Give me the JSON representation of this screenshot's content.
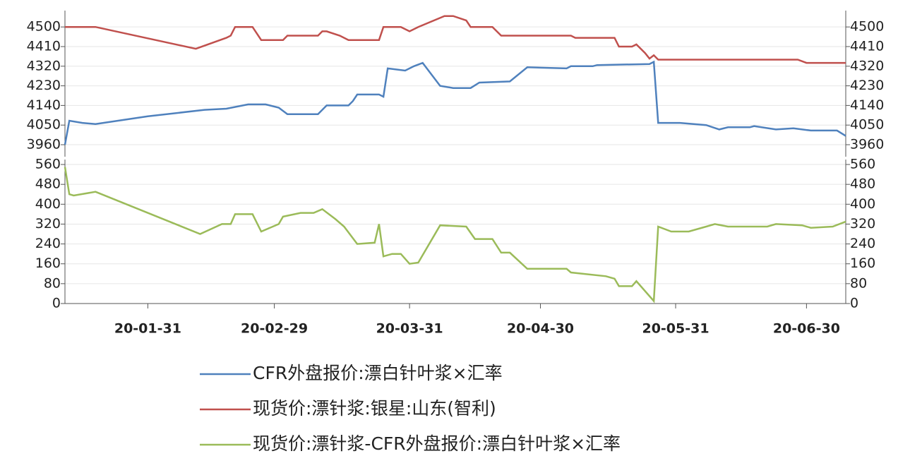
{
  "chart_data": [
    {
      "type": "line",
      "ylim": [
        3905,
        4575
      ],
      "yticks": [
        3960,
        4050,
        4140,
        4230,
        4320,
        4410,
        4500
      ],
      "grid": true,
      "xlim": [
        "20-01-12",
        "20-07-09"
      ],
      "legend": "bottom",
      "series": [
        {
          "name": "CFR外盘报价:漂白针叶浆×汇率",
          "color": "#4f81bd",
          "x": [
            "20-01-12",
            "20-01-13",
            "20-01-16",
            "20-01-19",
            "20-01-31",
            "20-02-13",
            "20-02-18",
            "20-02-23",
            "20-02-27",
            "20-03-01",
            "20-03-03",
            "20-03-10",
            "20-03-12",
            "20-03-17",
            "20-03-18",
            "20-03-19",
            "20-03-24",
            "20-03-25",
            "20-03-26",
            "20-03-30",
            "20-04-01",
            "20-04-03",
            "20-04-07",
            "20-04-10",
            "20-04-14",
            "20-04-16",
            "20-04-23",
            "20-04-27",
            "20-05-06",
            "20-05-07",
            "20-05-12",
            "20-05-13",
            "20-05-25",
            "20-05-26",
            "20-05-27",
            "20-06-01",
            "20-06-07",
            "20-06-10",
            "20-06-12",
            "20-06-17",
            "20-06-18",
            "20-06-23",
            "20-06-27",
            "20-07-01",
            "20-07-07",
            "20-07-09"
          ],
          "values": [
            3960,
            4070,
            4060,
            4055,
            4090,
            4120,
            4125,
            4145,
            4145,
            4130,
            4100,
            4100,
            4140,
            4140,
            4160,
            4190,
            4190,
            4180,
            4310,
            4300,
            4320,
            4335,
            4230,
            4220,
            4220,
            4245,
            4250,
            4315,
            4310,
            4320,
            4320,
            4325,
            4330,
            4340,
            4060,
            4060,
            4050,
            4030,
            4040,
            4040,
            4045,
            4030,
            4035,
            4025,
            4025,
            4000
          ]
        },
        {
          "name": "现货价:漂针浆:银星:山东(智利)",
          "color": "#c0504d",
          "x": [
            "20-01-12",
            "20-01-19",
            "20-02-11",
            "20-02-18",
            "20-02-19",
            "20-02-20",
            "20-02-24",
            "20-02-26",
            "20-03-02",
            "20-03-03",
            "20-03-10",
            "20-03-11",
            "20-03-12",
            "20-03-15",
            "20-03-17",
            "20-03-24",
            "20-03-25",
            "20-03-29",
            "20-03-31",
            "20-04-02",
            "20-04-08",
            "20-04-10",
            "20-04-13",
            "20-04-14",
            "20-04-19",
            "20-04-21",
            "20-05-07",
            "20-05-08",
            "20-05-17",
            "20-05-18",
            "20-05-21",
            "20-05-22",
            "20-05-24",
            "20-05-25",
            "20-05-26",
            "20-05-27",
            "20-06-28",
            "20-06-30",
            "20-07-09"
          ],
          "values": [
            4500,
            4500,
            4400,
            4450,
            4460,
            4500,
            4500,
            4440,
            4440,
            4460,
            4460,
            4480,
            4480,
            4460,
            4440,
            4440,
            4500,
            4500,
            4480,
            4500,
            4550,
            4550,
            4530,
            4500,
            4500,
            4460,
            4460,
            4450,
            4450,
            4410,
            4410,
            4420,
            4380,
            4355,
            4370,
            4350,
            4350,
            4335,
            4335
          ]
        }
      ]
    },
    {
      "type": "line",
      "ylim": [
        0,
        580
      ],
      "yticks": [
        0,
        80,
        160,
        240,
        320,
        400,
        480,
        560
      ],
      "grid": true,
      "xlim": [
        "20-01-12",
        "20-07-09"
      ],
      "xticks": [
        "20-01-31",
        "20-02-29",
        "20-03-31",
        "20-04-30",
        "20-05-31",
        "20-06-30"
      ],
      "legend": "bottom",
      "series": [
        {
          "name": "现货价:漂针浆-CFR外盘报价:漂白针叶浆×汇率",
          "color": "#9bbb59",
          "x": [
            "20-01-12",
            "20-01-13",
            "20-01-14",
            "20-01-19",
            "20-02-12",
            "20-02-17",
            "20-02-19",
            "20-02-20",
            "20-02-24",
            "20-02-26",
            "20-03-01",
            "20-03-02",
            "20-03-06",
            "20-03-09",
            "20-03-11",
            "20-03-14",
            "20-03-16",
            "20-03-19",
            "20-03-23",
            "20-03-24",
            "20-03-25",
            "20-03-27",
            "20-03-29",
            "20-03-31",
            "20-04-02",
            "20-04-07",
            "20-04-13",
            "20-04-15",
            "20-04-19",
            "20-04-21",
            "20-04-23",
            "20-04-27",
            "20-05-06",
            "20-05-07",
            "20-05-15",
            "20-05-17",
            "20-05-18",
            "20-05-21",
            "20-05-22",
            "20-05-26",
            "20-05-27",
            "20-05-30",
            "20-06-03",
            "20-06-07",
            "20-06-09",
            "20-06-12",
            "20-06-21",
            "20-06-23",
            "20-06-29",
            "20-07-01",
            "20-07-06",
            "20-07-09"
          ],
          "values": [
            550,
            440,
            435,
            450,
            280,
            320,
            320,
            360,
            360,
            290,
            320,
            350,
            365,
            365,
            380,
            340,
            310,
            240,
            245,
            320,
            190,
            200,
            200,
            160,
            165,
            315,
            310,
            260,
            260,
            205,
            205,
            140,
            140,
            125,
            110,
            100,
            70,
            70,
            90,
            10,
            310,
            290,
            290,
            310,
            320,
            310,
            310,
            320,
            315,
            305,
            310,
            330
          ]
        }
      ]
    }
  ]
}
